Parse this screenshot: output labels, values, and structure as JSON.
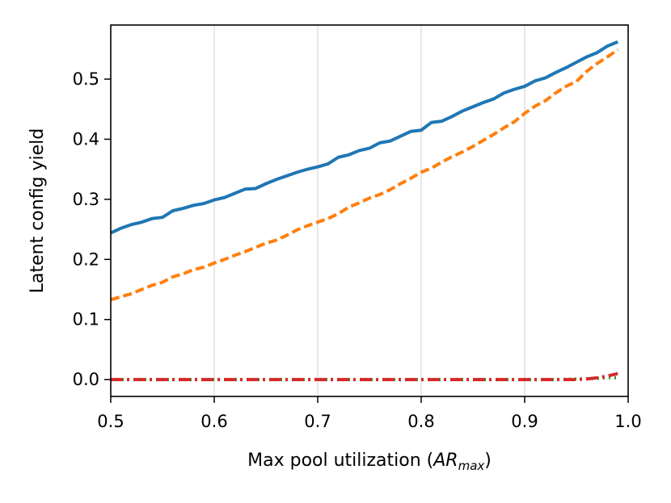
{
  "chart_data": {
    "type": "line",
    "xlabel": "Max pool utilization (",
    "xlabel_math": "AR",
    "xlabel_sub": "max",
    "xlabel_close": ")",
    "ylabel": "Latent config yield",
    "xlim": [
      0.5,
      1.0
    ],
    "ylim": [
      -0.028,
      0.59
    ],
    "xticks": [
      "0.5",
      "0.6",
      "0.7",
      "0.8",
      "0.9",
      "1.0"
    ],
    "yticks": [
      "0.0",
      "0.1",
      "0.2",
      "0.3",
      "0.4",
      "0.5"
    ],
    "grid": "vertical",
    "legend": "none",
    "series": [
      {
        "color": "#1f77b4",
        "style": "solid",
        "x": [
          0.5,
          0.51,
          0.52,
          0.53,
          0.54,
          0.55,
          0.56,
          0.57,
          0.58,
          0.59,
          0.6,
          0.61,
          0.62,
          0.63,
          0.64,
          0.65,
          0.66,
          0.67,
          0.68,
          0.69,
          0.7,
          0.71,
          0.72,
          0.73,
          0.74,
          0.75,
          0.76,
          0.77,
          0.78,
          0.79,
          0.8,
          0.81,
          0.82,
          0.83,
          0.84,
          0.85,
          0.86,
          0.87,
          0.88,
          0.89,
          0.9,
          0.91,
          0.92,
          0.93,
          0.94,
          0.95,
          0.96,
          0.97,
          0.98,
          0.99
        ],
        "y": [
          0.244,
          0.252,
          0.258,
          0.262,
          0.268,
          0.27,
          0.281,
          0.285,
          0.29,
          0.293,
          0.299,
          0.303,
          0.31,
          0.317,
          0.318,
          0.326,
          0.333,
          0.339,
          0.345,
          0.35,
          0.354,
          0.359,
          0.37,
          0.374,
          0.381,
          0.385,
          0.394,
          0.397,
          0.405,
          0.413,
          0.415,
          0.428,
          0.43,
          0.438,
          0.447,
          0.454,
          0.461,
          0.467,
          0.477,
          0.483,
          0.488,
          0.497,
          0.502,
          0.511,
          0.519,
          0.528,
          0.537,
          0.544,
          0.555,
          0.562
        ]
      },
      {
        "color": "#ff7f0e",
        "style": "dashed",
        "x": [
          0.5,
          0.51,
          0.52,
          0.53,
          0.54,
          0.55,
          0.56,
          0.57,
          0.58,
          0.59,
          0.6,
          0.61,
          0.62,
          0.63,
          0.64,
          0.65,
          0.66,
          0.67,
          0.68,
          0.69,
          0.7,
          0.71,
          0.72,
          0.73,
          0.74,
          0.75,
          0.76,
          0.77,
          0.78,
          0.79,
          0.8,
          0.81,
          0.82,
          0.83,
          0.84,
          0.85,
          0.86,
          0.87,
          0.88,
          0.89,
          0.9,
          0.91,
          0.92,
          0.93,
          0.94,
          0.95,
          0.96,
          0.97,
          0.98,
          0.99
        ],
        "y": [
          0.133,
          0.138,
          0.143,
          0.15,
          0.157,
          0.162,
          0.171,
          0.176,
          0.183,
          0.187,
          0.194,
          0.2,
          0.207,
          0.213,
          0.22,
          0.227,
          0.232,
          0.24,
          0.249,
          0.256,
          0.262,
          0.268,
          0.276,
          0.287,
          0.294,
          0.302,
          0.308,
          0.316,
          0.326,
          0.335,
          0.345,
          0.352,
          0.362,
          0.371,
          0.379,
          0.388,
          0.398,
          0.408,
          0.419,
          0.429,
          0.443,
          0.455,
          0.464,
          0.477,
          0.488,
          0.496,
          0.513,
          0.526,
          0.537,
          0.549
        ]
      },
      {
        "color": "#2ca02c",
        "style": "dotted",
        "x": [
          0.5,
          0.55,
          0.6,
          0.65,
          0.7,
          0.75,
          0.8,
          0.85,
          0.9,
          0.93,
          0.95,
          0.97,
          0.98,
          0.99
        ],
        "y": [
          0.0,
          0.0,
          0.0,
          0.0,
          0.0,
          0.0,
          0.0,
          0.0,
          0.0,
          0.0,
          0.001,
          0.002,
          0.003,
          0.003
        ]
      },
      {
        "color": "#d62728",
        "style": "dashdot",
        "x": [
          0.5,
          0.55,
          0.6,
          0.65,
          0.7,
          0.75,
          0.8,
          0.85,
          0.9,
          0.93,
          0.95,
          0.96,
          0.97,
          0.98,
          0.99
        ],
        "y": [
          0.0,
          0.0,
          0.0,
          0.0,
          0.0,
          0.0,
          0.0,
          0.0,
          0.0,
          0.0,
          0.0,
          0.001,
          0.003,
          0.006,
          0.01
        ]
      }
    ]
  }
}
